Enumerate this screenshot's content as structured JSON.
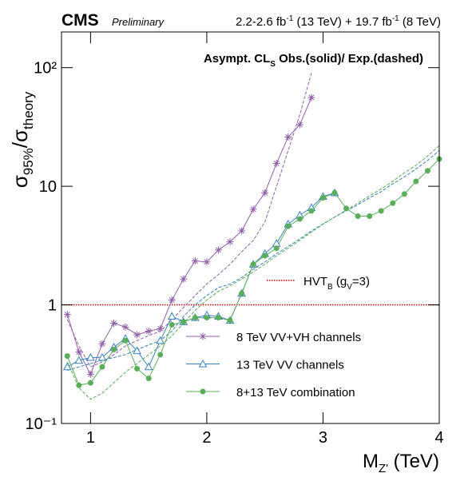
{
  "chart_data": {
    "type": "line",
    "log_y": true,
    "experiment": "CMS",
    "status": "Preliminary",
    "lumi_parts": [
      "2.2-2.6 fb",
      "-1",
      " (13 TeV) + 19.7 fb",
      "-1",
      " (8 TeV)"
    ],
    "annotation_parts": [
      "Asympt. CL",
      "S",
      " Obs.(solid)/ Exp.(dashed)"
    ],
    "ylabel_parts": [
      "σ",
      "95%",
      "/σ",
      "theory"
    ],
    "xlabel_parts": [
      "M",
      "Z'",
      " (TeV)"
    ],
    "xlim": [
      0.75,
      4
    ],
    "xticks": [
      1,
      2,
      3,
      4
    ],
    "ylim": [
      0.1,
      200
    ],
    "yticks": [
      {
        "value": 0.1,
        "label": "10⁻¹"
      },
      1,
      10,
      {
        "value": 100,
        "label": "10²"
      }
    ],
    "x": [
      0.8,
      0.9,
      1.0,
      1.1,
      1.2,
      1.3,
      1.4,
      1.5,
      1.6,
      1.7,
      1.8,
      1.9,
      2.0,
      2.1,
      2.2,
      2.3,
      2.4,
      2.5,
      2.6,
      2.7,
      2.8,
      2.9,
      3.0,
      3.1,
      3.2,
      3.3,
      3.4,
      3.5,
      3.6,
      3.7,
      3.8,
      3.9,
      4.0
    ],
    "reference_line": {
      "value": 1,
      "color": "#cc0000",
      "label_parts": [
        "HVT",
        "B",
        " (g",
        "V",
        "=3)"
      ]
    },
    "series": [
      {
        "name": "8 TeV VV+VH channels",
        "color": "#9060a8",
        "marker": "asterisk",
        "values": [
          0.83,
          0.4,
          0.26,
          0.47,
          0.7,
          0.65,
          0.56,
          0.6,
          0.63,
          1.1,
          1.65,
          2.35,
          2.3,
          2.9,
          3.4,
          4.2,
          6.4,
          8.8,
          15.6,
          26,
          33,
          56,
          null,
          null,
          null,
          null,
          null,
          null,
          null,
          null,
          null,
          null,
          null
        ],
        "expected": [
          0.75,
          0.45,
          0.3,
          0.33,
          0.38,
          0.45,
          0.5,
          0.55,
          0.6,
          0.75,
          0.95,
          1.2,
          1.5,
          1.8,
          2.2,
          2.8,
          3.5,
          5,
          10,
          20,
          40,
          90,
          null,
          null,
          null,
          null,
          null,
          null,
          null,
          null,
          null,
          null,
          null
        ]
      },
      {
        "name": "13 TeV VV channels",
        "color": "#3a80b8",
        "marker": "triangle",
        "values": [
          0.3,
          0.34,
          0.36,
          0.36,
          0.44,
          0.52,
          0.41,
          0.3,
          0.5,
          0.8,
          0.72,
          0.78,
          0.82,
          0.8,
          0.74,
          1.25,
          2.2,
          2.7,
          3.3,
          4.8,
          5.7,
          6.6,
          8.2,
          8.8,
          null,
          null,
          null,
          null,
          null,
          null,
          null,
          null,
          null
        ],
        "expected": [
          0.28,
          0.3,
          0.32,
          0.34,
          0.36,
          0.38,
          0.42,
          0.46,
          0.5,
          0.6,
          0.8,
          1.0,
          1.2,
          1.4,
          1.5,
          1.7,
          2.0,
          2.3,
          2.7,
          3.1,
          3.6,
          4.2,
          4.8,
          5.5,
          6.2,
          7,
          8,
          9,
          10.5,
          12,
          14,
          16.5,
          20
        ]
      },
      {
        "name": "8+13 TeV combination",
        "color": "#5aae5a",
        "marker": "circle",
        "values": [
          0.37,
          0.21,
          0.22,
          0.3,
          0.42,
          0.5,
          0.29,
          0.24,
          0.38,
          0.68,
          0.72,
          0.78,
          0.78,
          0.78,
          0.74,
          1.25,
          2.2,
          2.6,
          3.0,
          4.6,
          5.3,
          6.2,
          8.0,
          8.8,
          6.5,
          5.6,
          5.6,
          6.2,
          7.2,
          8.6,
          11,
          13.5,
          17
        ],
        "expected": [
          0.33,
          0.2,
          0.16,
          0.18,
          0.22,
          0.27,
          0.32,
          0.38,
          0.45,
          0.55,
          0.7,
          0.9,
          1.1,
          1.3,
          1.45,
          1.65,
          1.9,
          2.2,
          2.6,
          3.0,
          3.5,
          4.1,
          4.8,
          5.5,
          6.3,
          7.2,
          8.3,
          9.5,
          11,
          13,
          15,
          18,
          22
        ]
      }
    ]
  }
}
